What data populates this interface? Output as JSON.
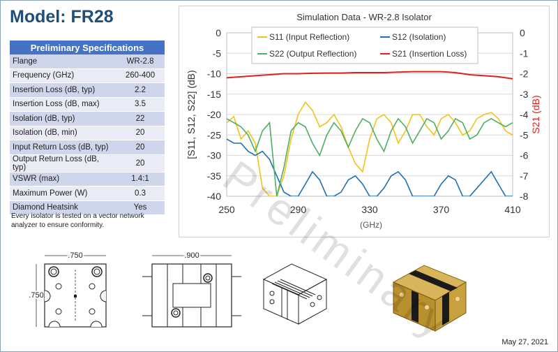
{
  "header": {
    "title": "Model: FR28"
  },
  "specs": {
    "heading": "Preliminary Specifications",
    "rows": [
      {
        "label": "Flange",
        "value": "WR-2.8"
      },
      {
        "label": "Frequency (GHz)",
        "value": "260-400"
      },
      {
        "label": "Insertion Loss (dB, typ)",
        "value": "2.2"
      },
      {
        "label": "Insertion Loss (dB, max)",
        "value": "3.5"
      },
      {
        "label": "Isolation (dB, typ)",
        "value": "22"
      },
      {
        "label": "Isolation (dB, min)",
        "value": "20"
      },
      {
        "label": "Input Return Loss (dB, typ)",
        "value": "20"
      },
      {
        "label": "Output Return Loss (dB, typ)",
        "value": "20"
      },
      {
        "label": "VSWR (max)",
        "value": "1.4:1"
      },
      {
        "label": "Maximum Power (W)",
        "value": "0.3"
      },
      {
        "label": "Diamond Heatsink",
        "value": "Yes"
      }
    ],
    "note": "Every isolator is tested on a vector network analyzer to ensure conformity."
  },
  "watermark": "Preliminary",
  "drawings": {
    "dim_width_1": ".750",
    "dim_height_1": ".750",
    "dim_width_2": ".900"
  },
  "footer": {
    "date": "May 27, 2021"
  },
  "colors": {
    "title": "#1f4e79",
    "table_header": "#4472c4",
    "s11": "#f2c21b",
    "s12": "#1f6fb4",
    "s22": "#4caf62",
    "s21": "#e02020"
  },
  "chart_data": {
    "type": "line",
    "title": "Simulation Data - WR-2.8 Isolator",
    "xlabel": "(GHz)",
    "ylabel_left": "[S11, S12, S22] (dB)",
    "ylabel_right": "S21 (dB)",
    "xlim": [
      250,
      410
    ],
    "ylim_left": [
      -40,
      0
    ],
    "ylim_right": [
      -8,
      0
    ],
    "xticks": [
      "250",
      "290",
      "330",
      "370",
      "410"
    ],
    "yticks_left": [
      "0",
      "-5",
      "-10",
      "-15",
      "-20",
      "-25",
      "-30",
      "-35",
      "-40"
    ],
    "yticks_right": [
      "0",
      "-1",
      "-2",
      "-3",
      "-4",
      "-5",
      "-6",
      "-7",
      "-8"
    ],
    "legend_position": "top",
    "series": [
      {
        "name": "S11 (Input Reflection)",
        "axis": "left",
        "color": "#f2c21b",
        "x": [
          250,
          254,
          258,
          262,
          266,
          270,
          274,
          278,
          282,
          286,
          290,
          294,
          298,
          302,
          306,
          310,
          314,
          318,
          322,
          326,
          330,
          334,
          338,
          342,
          346,
          350,
          354,
          358,
          362,
          366,
          370,
          374,
          378,
          382,
          386,
          390,
          394,
          398,
          402,
          406,
          410
        ],
        "y": [
          -22,
          -20.5,
          -26,
          -24,
          -27,
          -38,
          -40,
          -40,
          -35,
          -26,
          -20,
          -17,
          -19,
          -23,
          -22,
          -20,
          -23,
          -28,
          -32,
          -34,
          -26,
          -21,
          -20,
          -22,
          -27,
          -24,
          -20,
          -20,
          -23,
          -25,
          -21,
          -20,
          -22,
          -25,
          -24,
          -21,
          -20,
          -19.5,
          -21,
          -24,
          -25
        ]
      },
      {
        "name": "S12 (Isolation)",
        "axis": "left",
        "color": "#1f6fb4",
        "x": [
          250,
          254,
          258,
          262,
          266,
          270,
          274,
          278,
          282,
          286,
          290,
          294,
          298,
          302,
          306,
          310,
          314,
          318,
          322,
          326,
          330,
          334,
          338,
          342,
          346,
          350,
          354,
          358,
          362,
          366,
          370,
          374,
          378,
          382,
          386,
          390,
          394,
          398,
          402,
          406,
          410
        ],
        "y": [
          -26,
          -27,
          -27,
          -29,
          -30,
          -29,
          -31,
          -35,
          -39,
          -40,
          -40,
          -37,
          -34,
          -36,
          -40,
          -40,
          -39,
          -36,
          -35,
          -37,
          -40,
          -40,
          -38,
          -35,
          -34,
          -36,
          -40,
          -40,
          -40,
          -40,
          -37,
          -35,
          -36,
          -40,
          -40,
          -38,
          -36,
          -34,
          -37,
          -40,
          -40
        ]
      },
      {
        "name": "S22 (Output Reflection)",
        "axis": "left",
        "color": "#4caf62",
        "x": [
          250,
          254,
          258,
          262,
          266,
          270,
          274,
          278,
          282,
          286,
          290,
          294,
          298,
          302,
          306,
          310,
          314,
          318,
          322,
          326,
          330,
          334,
          338,
          342,
          346,
          350,
          354,
          358,
          362,
          366,
          370,
          374,
          378,
          382,
          386,
          390,
          394,
          398,
          402,
          406,
          410
        ],
        "y": [
          -21,
          -22,
          -23,
          -25,
          -29,
          -24,
          -22,
          -40,
          -33,
          -24,
          -22,
          -23,
          -27,
          -30,
          -25,
          -22,
          -24,
          -28,
          -24,
          -21,
          -22,
          -26,
          -29,
          -24,
          -21,
          -23,
          -27,
          -24,
          -21,
          -22,
          -26,
          -24,
          -21,
          -22,
          -26,
          -25,
          -22,
          -21,
          -22,
          -23,
          -22
        ]
      },
      {
        "name": "S21 (Insertion Loss)",
        "axis": "right",
        "color": "#e02020",
        "x": [
          250,
          258,
          266,
          274,
          282,
          290,
          298,
          306,
          314,
          322,
          330,
          338,
          346,
          354,
          362,
          370,
          378,
          386,
          394,
          402,
          410
        ],
        "y": [
          -2.2,
          -2.15,
          -2.1,
          -2.05,
          -2.0,
          -2.0,
          -1.98,
          -1.97,
          -1.97,
          -1.95,
          -1.95,
          -1.95,
          -1.92,
          -1.9,
          -1.9,
          -1.9,
          -1.95,
          -2.05,
          -2.1,
          -2.15,
          -2.25
        ]
      }
    ]
  }
}
